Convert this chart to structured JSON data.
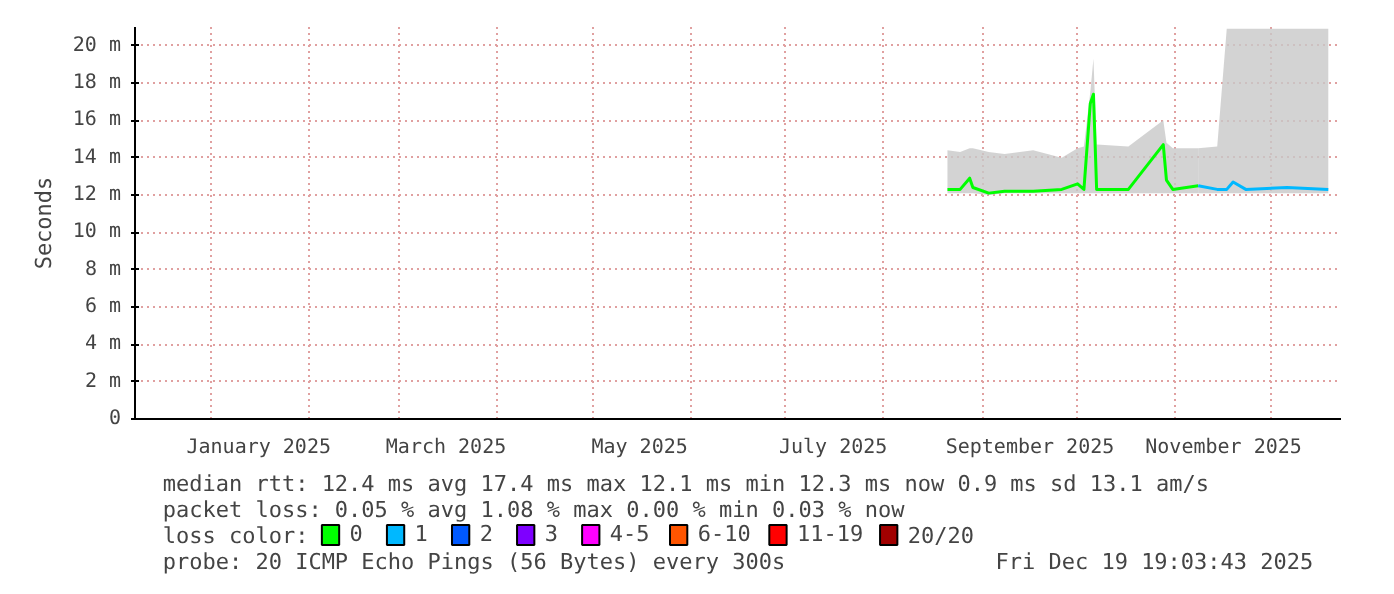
{
  "chart_data": {
    "type": "line",
    "ylabel": "Seconds",
    "x": [
      "2025-08-21",
      "2025-08-25",
      "2025-08-28",
      "2025-08-29",
      "2025-09-03",
      "2025-09-08",
      "2025-09-17",
      "2025-09-26",
      "2025-10-01",
      "2025-10-03",
      "2025-10-05",
      "2025-10-06",
      "2025-10-07",
      "2025-10-17",
      "2025-10-28",
      "2025-10-29",
      "2025-10-31",
      "2025-11-08",
      "2025-11-14",
      "2025-11-17",
      "2025-11-19",
      "2025-11-23",
      "2025-12-06",
      "2025-12-19"
    ],
    "series": [
      {
        "name": "0",
        "color": "#00ff00",
        "values": [
          12.3,
          12.3,
          12.9,
          12.4,
          12.1,
          12.2,
          12.2,
          12.3,
          12.6,
          12.3,
          16.9,
          17.4,
          12.3,
          12.3,
          14.7,
          12.8,
          12.3,
          12.5,
          null,
          null,
          null,
          null,
          null,
          null
        ],
        "lower": [
          12.1,
          12.1,
          12.1,
          12.1,
          12.0,
          12.1,
          12.1,
          12.1,
          12.1,
          12.1,
          12.1,
          12.1,
          12.1,
          12.1,
          12.1,
          12.1,
          12.1,
          12.1,
          null,
          null,
          null,
          null,
          null,
          null
        ],
        "upper": [
          14.4,
          14.3,
          14.5,
          14.5,
          14.3,
          14.2,
          14.4,
          14.0,
          14.5,
          14.6,
          17.5,
          19.3,
          14.7,
          14.6,
          16.0,
          14.8,
          14.5,
          14.5,
          null,
          null,
          null,
          null,
          null,
          null
        ]
      },
      {
        "name": "1",
        "color": "#00b8ff",
        "values": [
          null,
          null,
          null,
          null,
          null,
          null,
          null,
          null,
          null,
          null,
          null,
          null,
          null,
          null,
          null,
          null,
          null,
          12.5,
          12.3,
          12.3,
          12.7,
          12.3,
          12.4,
          12.3
        ],
        "lower": [
          null,
          null,
          null,
          null,
          null,
          null,
          null,
          null,
          null,
          null,
          null,
          null,
          null,
          null,
          null,
          null,
          null,
          12.1,
          12.1,
          12.1,
          12.1,
          12.1,
          12.1,
          12.1
        ],
        "upper": [
          null,
          null,
          null,
          null,
          null,
          null,
          null,
          null,
          null,
          null,
          null,
          null,
          null,
          null,
          null,
          null,
          null,
          14.5,
          14.6,
          20.9,
          20.9,
          20.9,
          20.9,
          20.9
        ]
      },
      {
        "name": "2",
        "color": "#0059ff",
        "values": [
          null,
          null,
          null,
          null,
          null,
          null,
          null,
          null,
          null,
          null,
          null,
          null,
          null,
          null,
          null,
          null,
          null,
          null,
          null,
          null,
          null,
          null,
          null,
          null
        ]
      },
      {
        "name": "3",
        "color": "#7e00ff",
        "values": [
          null,
          null,
          null,
          null,
          null,
          null,
          null,
          null,
          null,
          null,
          null,
          null,
          null,
          null,
          null,
          null,
          null,
          null,
          null,
          null,
          null,
          null,
          null,
          null
        ]
      },
      {
        "name": "4-5",
        "color": "#ff00ff",
        "values": [
          null,
          null,
          null,
          null,
          null,
          null,
          null,
          null,
          null,
          null,
          null,
          null,
          null,
          null,
          null,
          null,
          null,
          null,
          null,
          null,
          null,
          null,
          null,
          null
        ]
      },
      {
        "name": "6-10",
        "color": "#ff5500",
        "values": [
          null,
          null,
          null,
          null,
          null,
          null,
          null,
          null,
          null,
          null,
          null,
          null,
          null,
          null,
          null,
          null,
          null,
          null,
          null,
          null,
          null,
          null,
          null,
          null
        ]
      },
      {
        "name": "11-19",
        "color": "#ff0000",
        "values": [
          null,
          null,
          null,
          null,
          null,
          null,
          null,
          null,
          null,
          null,
          null,
          null,
          null,
          null,
          null,
          null,
          null,
          null,
          null,
          null,
          null,
          null,
          null,
          null
        ]
      },
      {
        "name": "20/20",
        "color": "#a10000",
        "values": [
          null,
          null,
          null,
          null,
          null,
          null,
          null,
          null,
          null,
          null,
          null,
          null,
          null,
          null,
          null,
          null,
          null,
          null,
          null,
          null,
          null,
          null,
          null,
          null
        ]
      }
    ],
    "legend_title": "loss color:",
    "legend": "bottom",
    "grid": true,
    "marker": "none",
    "line_style": "solid",
    "xlim": [
      "2024-12-08",
      "2025-12-23"
    ],
    "xticks": [
      {
        "value": "2025-01-01",
        "label": null
      },
      {
        "value": "2025-01-16",
        "label": "January 2025"
      },
      {
        "value": "2025-02-01",
        "label": null
      },
      {
        "value": "2025-03-01",
        "label": null
      },
      {
        "value": "2025-03-16",
        "label": "March 2025"
      },
      {
        "value": "2025-04-01",
        "label": null
      },
      {
        "value": "2025-05-01",
        "label": null
      },
      {
        "value": "2025-05-16",
        "label": "May 2025"
      },
      {
        "value": "2025-06-01",
        "label": null
      },
      {
        "value": "2025-07-01",
        "label": null
      },
      {
        "value": "2025-07-16",
        "label": "July 2025"
      },
      {
        "value": "2025-08-01",
        "label": null
      },
      {
        "value": "2025-09-01",
        "label": null
      },
      {
        "value": "2025-09-16",
        "label": "September 2025"
      },
      {
        "value": "2025-10-01",
        "label": null
      },
      {
        "value": "2025-11-01",
        "label": null
      },
      {
        "value": "2025-11-16",
        "label": "November 2025"
      },
      {
        "value": "2025-12-01",
        "label": null
      }
    ],
    "ylim": [
      0,
      21
    ],
    "yticks": [
      0,
      {
        "value": 2,
        "label": "2 m"
      },
      {
        "value": 4,
        "label": "4 m"
      },
      {
        "value": 6,
        "label": "6 m"
      },
      {
        "value": 8,
        "label": "8 m"
      },
      {
        "value": 10,
        "label": "10 m"
      },
      {
        "value": 12,
        "label": "12 m"
      },
      {
        "value": 14,
        "label": "14 m"
      },
      {
        "value": 16,
        "label": "16 m"
      },
      {
        "value": 18,
        "label": "18 m"
      },
      {
        "value": 20,
        "label": "20 m"
      }
    ],
    "annotations": [
      "median rtt:  12.4 ms avg  17.4 ms max  12.1 ms min  12.3 ms now  0.9 ms sd  13.1   am/s",
      "packet loss: 0.05 % avg  1.08 % max  0.00 % min  0.03 % now",
      "probe:       20 ICMP Echo Pings (56 Bytes) every 300s",
      "Fri Dec 19 19:03:43 2025"
    ]
  }
}
